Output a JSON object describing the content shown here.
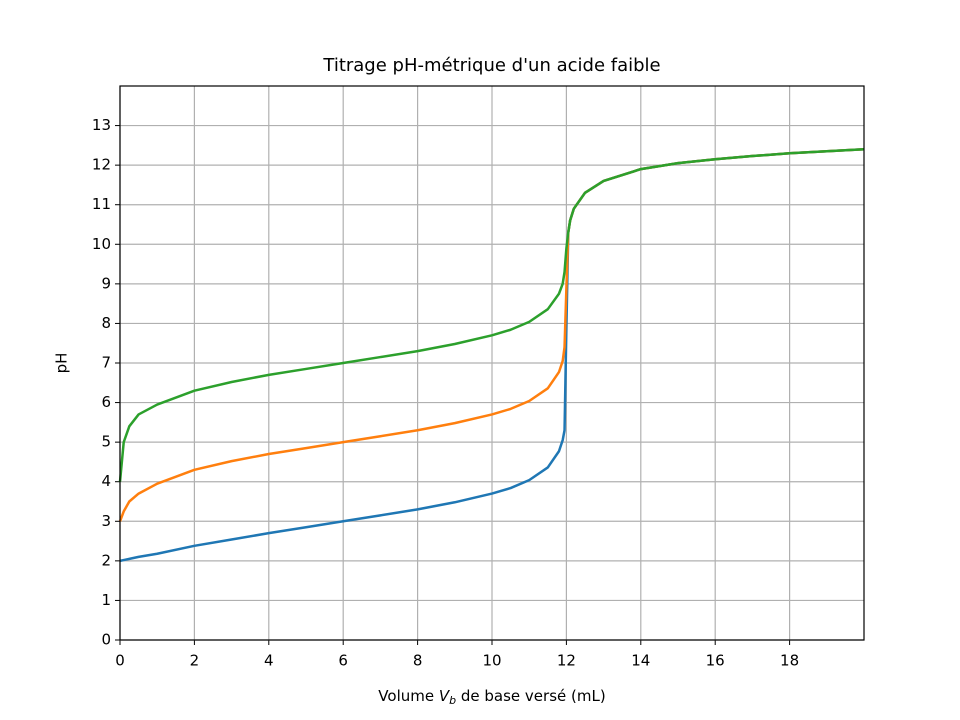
{
  "chart_data": {
    "type": "line",
    "title": "Titrage pH-métrique d'un acide faible",
    "xlabel": [
      "Volume ",
      "V",
      "b",
      " de base versé (mL)"
    ],
    "ylabel": "pH",
    "x": [
      0,
      0.1,
      0.25,
      0.5,
      1,
      2,
      3,
      4,
      5,
      6,
      7,
      8,
      9,
      10,
      10.5,
      11,
      11.5,
      11.8,
      11.9,
      11.95,
      12,
      12.05,
      12.1,
      12.2,
      12.5,
      13,
      14,
      15,
      16,
      17,
      18,
      19,
      20
    ],
    "series": [
      {
        "color": "#1f77b4",
        "values": [
          2.0,
          2.02,
          2.05,
          2.1,
          2.18,
          2.38,
          2.54,
          2.7,
          2.85,
          3.0,
          3.15,
          3.3,
          3.48,
          3.7,
          3.84,
          4.04,
          4.36,
          4.77,
          5.05,
          5.3,
          7.9,
          10.3,
          10.6,
          10.9,
          11.3,
          11.6,
          11.9,
          12.05,
          12.15,
          12.23,
          12.3,
          12.35,
          12.4
        ]
      },
      {
        "color": "#ff7f0e",
        "values": [
          3.0,
          3.25,
          3.5,
          3.7,
          3.95,
          4.3,
          4.52,
          4.7,
          4.85,
          5.0,
          5.15,
          5.3,
          5.48,
          5.7,
          5.84,
          6.04,
          6.36,
          6.77,
          7.05,
          7.4,
          8.9,
          10.3,
          10.6,
          10.9,
          11.3,
          11.6,
          11.9,
          12.05,
          12.15,
          12.23,
          12.3,
          12.35,
          12.4
        ]
      },
      {
        "color": "#2ca02c",
        "values": [
          4.0,
          5.0,
          5.4,
          5.7,
          5.95,
          6.3,
          6.52,
          6.7,
          6.85,
          7.0,
          7.15,
          7.3,
          7.48,
          7.7,
          7.84,
          8.04,
          8.36,
          8.75,
          9.0,
          9.3,
          9.9,
          10.3,
          10.6,
          10.9,
          11.3,
          11.6,
          11.9,
          12.05,
          12.15,
          12.23,
          12.3,
          12.35,
          12.4
        ]
      }
    ],
    "xlim": [
      0,
      20
    ],
    "ylim": [
      0,
      14
    ],
    "xticks": [
      0,
      2,
      4,
      6,
      8,
      10,
      12,
      14,
      16,
      18
    ],
    "yticks": [
      0,
      1,
      2,
      3,
      4,
      5,
      6,
      7,
      8,
      9,
      10,
      11,
      12,
      13
    ],
    "grid": true
  }
}
